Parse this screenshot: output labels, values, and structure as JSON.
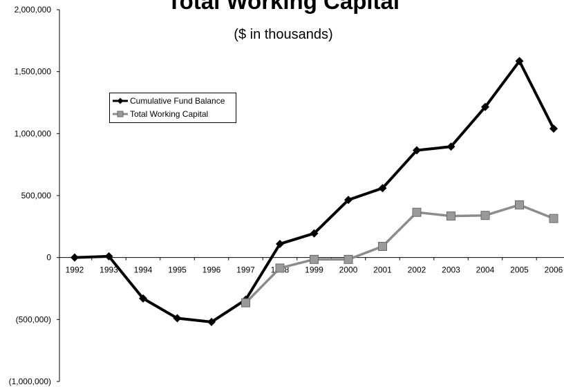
{
  "chart_data": {
    "type": "line",
    "title": "Total Working Capital",
    "subtitle": "($ in thousands)",
    "xlabel": "",
    "ylabel": "",
    "categories": [
      "1992",
      "1993",
      "1994",
      "1995",
      "1996",
      "1997",
      "1998",
      "1999",
      "2000",
      "2001",
      "2002",
      "2003",
      "2004",
      "2005",
      "2006"
    ],
    "ylim": [
      -1000000,
      2000000
    ],
    "yticks": [
      2000000,
      1500000,
      1000000,
      500000,
      0,
      -500000,
      -1000000
    ],
    "ytick_labels": [
      "2,000,000",
      "1,500,000",
      "1,000,000",
      "500,000",
      "0",
      "(500,000)",
      "(1,000,000)"
    ],
    "grid": false,
    "legend_position": "upper-left",
    "series": [
      {
        "name": "Cumulative Fund Balance",
        "color": "#000000",
        "marker": "diamond",
        "values": [
          0,
          10000,
          -330000,
          -490000,
          -520000,
          -340000,
          110000,
          195000,
          465000,
          560000,
          865000,
          895000,
          1215000,
          1585000,
          1040000
        ]
      },
      {
        "name": "Total Working Capital",
        "color": "#8c8c8c",
        "marker": "square",
        "values": [
          null,
          null,
          null,
          null,
          null,
          -365000,
          -85000,
          -15000,
          -15000,
          90000,
          365000,
          335000,
          340000,
          425000,
          315000
        ]
      }
    ]
  }
}
